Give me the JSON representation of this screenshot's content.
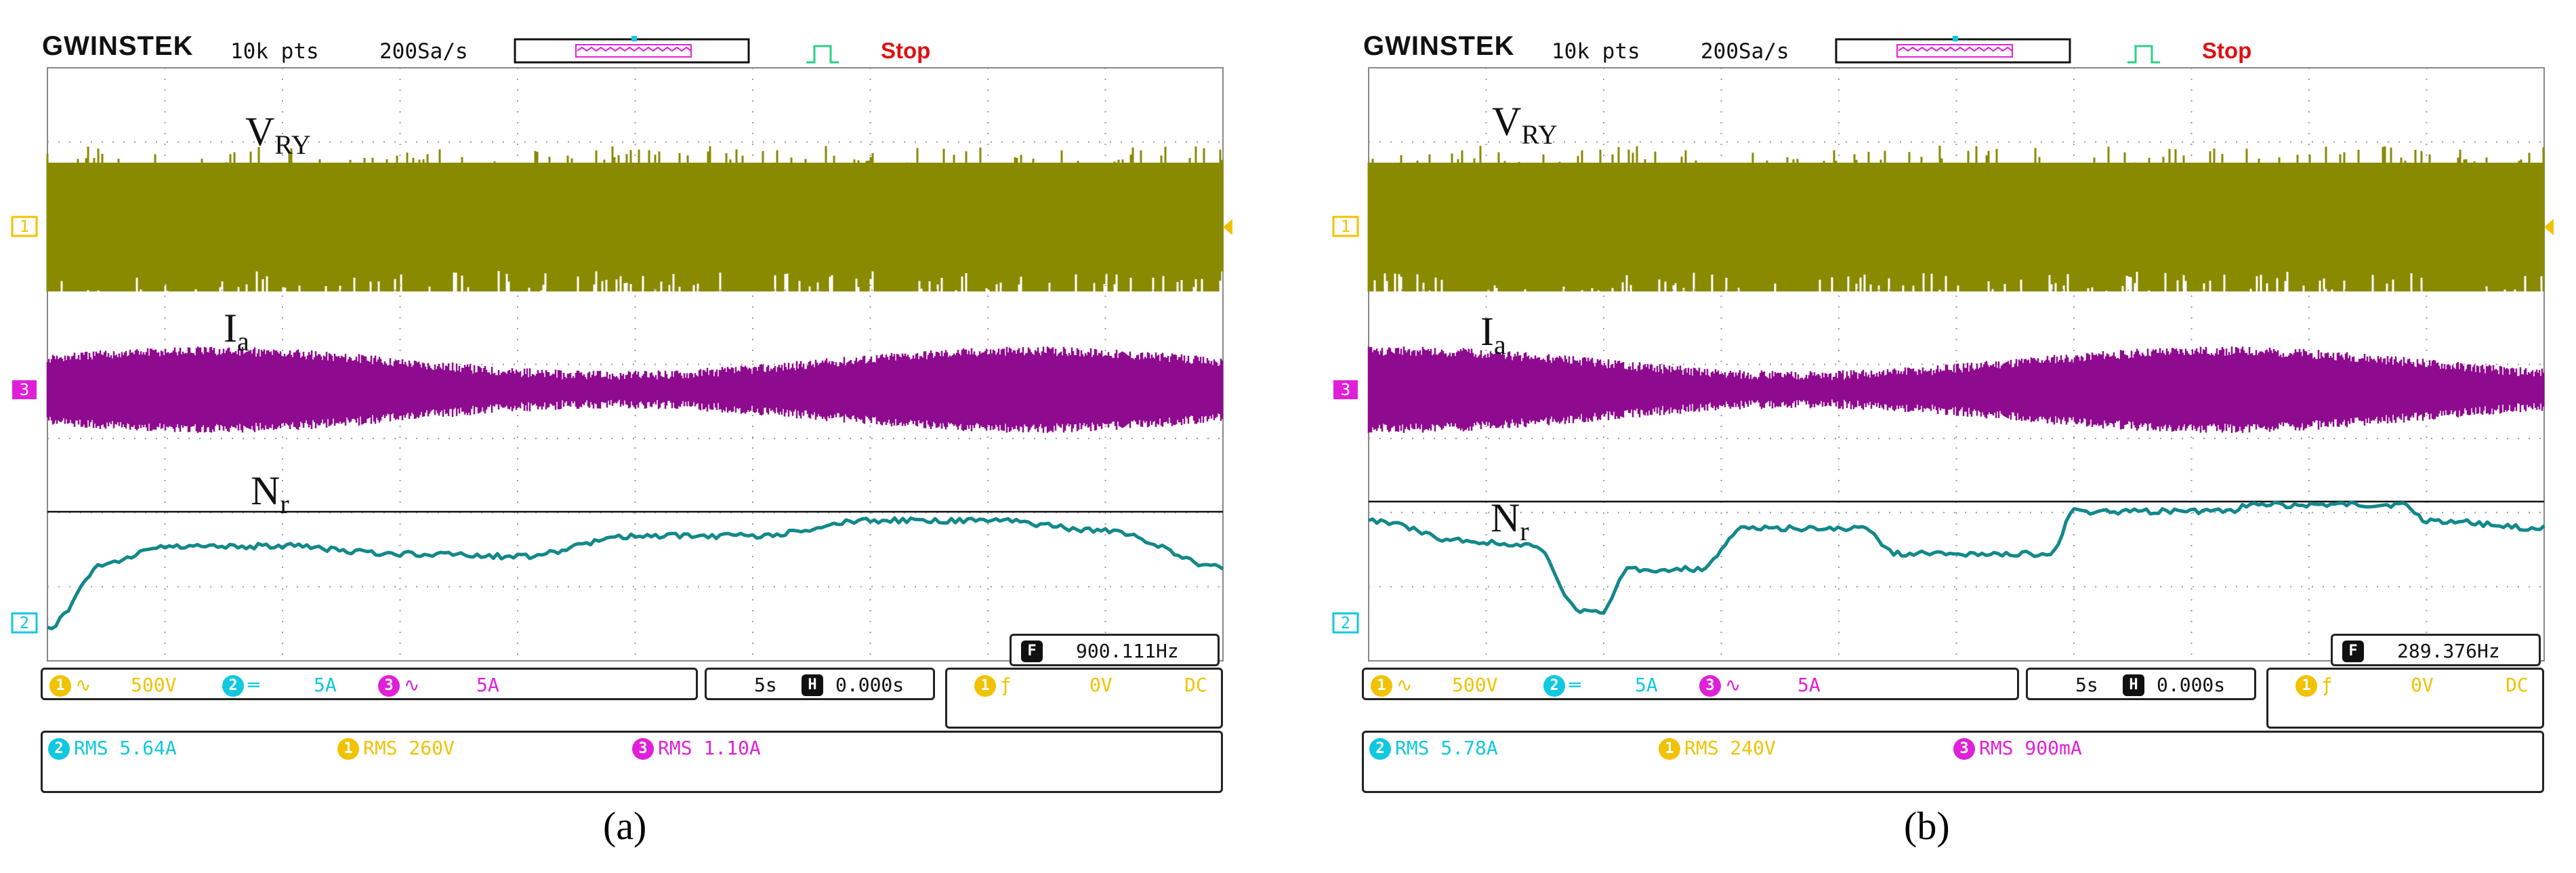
{
  "colors": {
    "ch1": "#8a8a00",
    "ch3": "#8e0a8e",
    "ch2": "#13888a",
    "grid": "#9a9a9a"
  },
  "chart_data": [
    {
      "type": "line",
      "panel_label": "(a)",
      "header": {
        "brand": "GWINSTEK",
        "points": "10k pts",
        "rate": "200Sa/s",
        "status": "Stop"
      },
      "trace_labels": {
        "v": "V",
        "v_sub": "RY",
        "i": "I",
        "i_sub": "a",
        "n": "N",
        "n_sub": "r"
      },
      "channel_markers": [
        "1",
        "3",
        "2"
      ],
      "channel_settings": {
        "ch1": "500V",
        "ch2": "5A",
        "ch3": "5A"
      },
      "timebase": "5s",
      "h_position": "0.000s",
      "trigger": {
        "source": "1",
        "level": "0V",
        "coupling": "DC"
      },
      "frequency": "900.111Hz",
      "measurements": {
        "ch2_rms": "RMS 5.64A",
        "ch1_rms": "RMS 260V",
        "ch3_rms": "RMS 1.10A"
      },
      "speed_trace_x": [
        0,
        5,
        10,
        20,
        30,
        40,
        50,
        60,
        70,
        80,
        90,
        100
      ],
      "speed_trace_level": [
        0.05,
        0.55,
        0.68,
        0.68,
        0.62,
        0.6,
        0.76,
        0.76,
        0.88,
        0.88,
        0.8,
        0.52
      ],
      "v_trace_dense_regions": [
        0,
        0
      ]
    },
    {
      "type": "line",
      "panel_label": "(b)",
      "header": {
        "brand": "GWINSTEK",
        "points": "10k pts",
        "rate": "200Sa/s",
        "status": "Stop"
      },
      "trace_labels": {
        "v": "V",
        "v_sub": "RY",
        "i": "I",
        "i_sub": "a",
        "n": "N",
        "n_sub": "r"
      },
      "channel_markers": [
        "1",
        "3",
        "2"
      ],
      "channel_settings": {
        "ch1": "500V",
        "ch2": "5A",
        "ch3": "5A"
      },
      "timebase": "5s",
      "h_position": "0.000s",
      "trigger": {
        "source": "1",
        "level": "0V",
        "coupling": "DC"
      },
      "frequency": "289.376Hz",
      "measurements": {
        "ch2_rms": "RMS 5.78A",
        "ch1_rms": "RMS 240V",
        "ch3_rms": "RMS 900mA"
      },
      "speed_trace_x": [
        0,
        8,
        14,
        18,
        20,
        22,
        28,
        32,
        42,
        45,
        58,
        60,
        73,
        75,
        88,
        90,
        100
      ],
      "speed_trace_level": [
        0.88,
        0.72,
        0.68,
        0.18,
        0.18,
        0.5,
        0.5,
        0.82,
        0.82,
        0.62,
        0.62,
        0.95,
        0.95,
        1.0,
        1.0,
        0.88,
        0.82
      ],
      "v_trace_dense_regions": [
        1,
        1
      ]
    }
  ]
}
